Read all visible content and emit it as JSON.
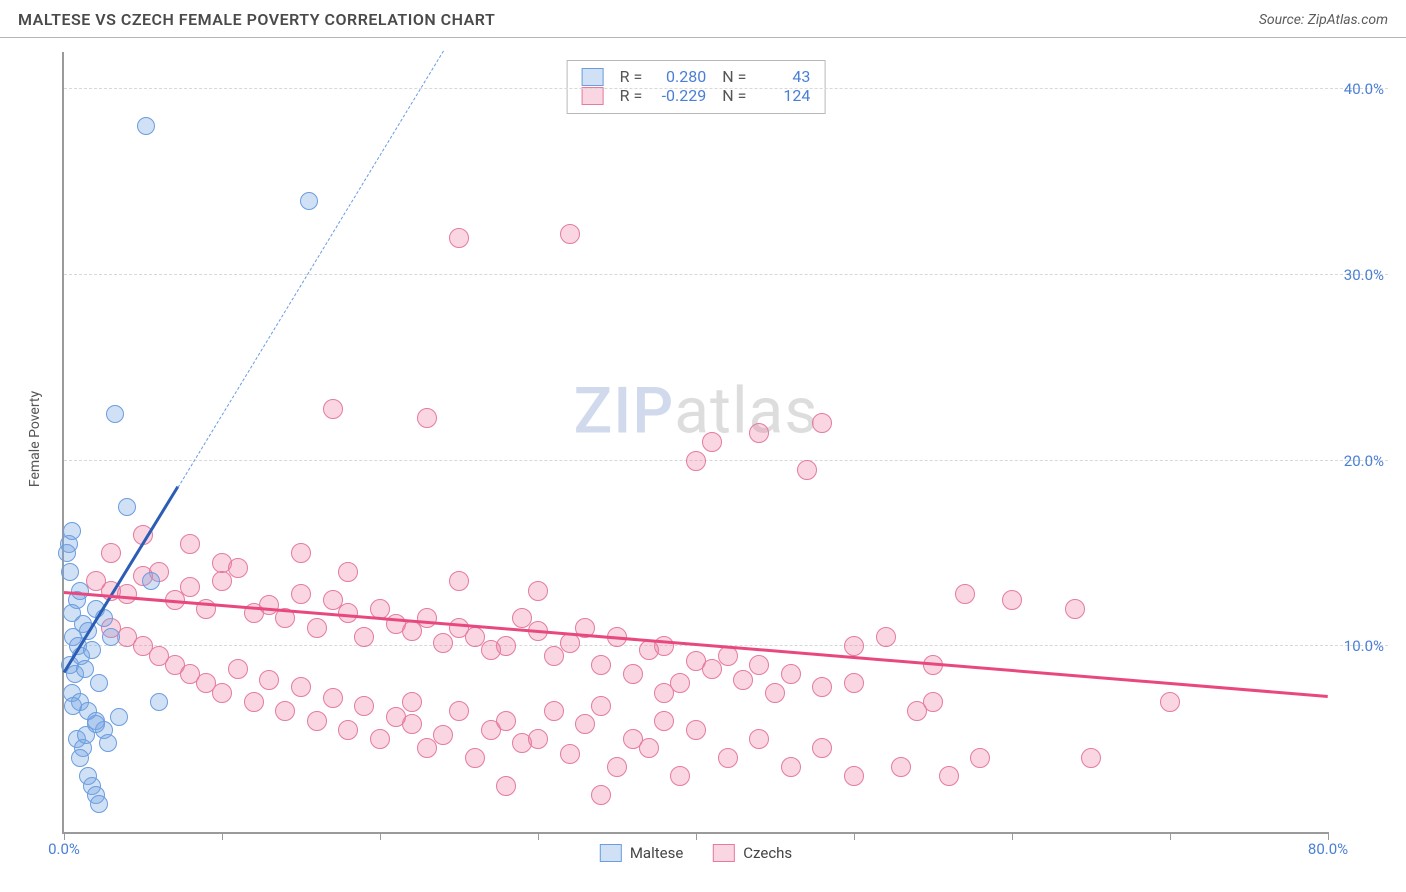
{
  "header": {
    "title": "MALTESE VS CZECH FEMALE POVERTY CORRELATION CHART",
    "source": "Source: ZipAtlas.com"
  },
  "axes": {
    "ylabel": "Female Poverty",
    "xlim": [
      0,
      80
    ],
    "ylim": [
      0,
      42
    ],
    "xticks": [
      0,
      10,
      20,
      30,
      40,
      50,
      60,
      70,
      80
    ],
    "xticklabels": [
      "0.0%",
      "",
      "",
      "",
      "",
      "",
      "",
      "",
      "80.0%"
    ],
    "yticks": [
      10,
      20,
      30,
      40
    ],
    "yticklabels": [
      "10.0%",
      "20.0%",
      "30.0%",
      "40.0%"
    ],
    "grid_color": "#d8d8d8",
    "axis_color": "#9a9a9a",
    "tick_label_color": "#4a7fd6",
    "label_fontsize": 14
  },
  "watermark": {
    "zip": "ZIP",
    "atlas": "atlas"
  },
  "series": {
    "maltese": {
      "label": "Maltese",
      "fill": "rgba(120,165,225,0.35)",
      "stroke": "#6b9de0",
      "marker_radius": 9,
      "R": "0.280",
      "N": "43",
      "trend": {
        "x1": 0,
        "y1": 8.5,
        "x2": 7.2,
        "y2": 18.5,
        "color": "#2b5db5"
      },
      "trend_ext": {
        "x1": 7.2,
        "y1": 18.5,
        "x2": 24,
        "y2": 42,
        "color": "#6b9de0"
      },
      "points": [
        [
          0.3,
          15.5
        ],
        [
          0.2,
          15.0
        ],
        [
          0.5,
          16.2
        ],
        [
          0.4,
          14.0
        ],
        [
          5.2,
          38.0
        ],
        [
          15.5,
          34.0
        ],
        [
          3.2,
          22.5
        ],
        [
          4.0,
          17.5
        ],
        [
          0.8,
          12.5
        ],
        [
          1.0,
          13.0
        ],
        [
          0.5,
          11.8
        ],
        [
          1.2,
          11.2
        ],
        [
          1.5,
          10.8
        ],
        [
          0.6,
          10.5
        ],
        [
          0.9,
          10.0
        ],
        [
          1.1,
          9.5
        ],
        [
          0.4,
          9.0
        ],
        [
          0.7,
          8.5
        ],
        [
          2.0,
          12.0
        ],
        [
          2.5,
          11.5
        ],
        [
          3.0,
          10.5
        ],
        [
          1.8,
          9.8
        ],
        [
          1.3,
          8.8
        ],
        [
          2.2,
          8.0
        ],
        [
          0.5,
          7.5
        ],
        [
          1.0,
          7.0
        ],
        [
          1.5,
          6.5
        ],
        [
          2.0,
          6.0
        ],
        [
          2.5,
          5.5
        ],
        [
          0.8,
          5.0
        ],
        [
          1.2,
          4.5
        ],
        [
          5.5,
          13.5
        ],
        [
          6.0,
          7.0
        ],
        [
          1.0,
          4.0
        ],
        [
          1.5,
          3.0
        ],
        [
          1.8,
          2.5
        ],
        [
          2.0,
          2.0
        ],
        [
          2.2,
          1.5
        ],
        [
          2.0,
          5.8
        ],
        [
          2.8,
          4.8
        ],
        [
          3.5,
          6.2
        ],
        [
          0.6,
          6.8
        ],
        [
          1.4,
          5.2
        ]
      ]
    },
    "czechs": {
      "label": "Czechs",
      "fill": "rgba(235,120,160,0.30)",
      "stroke": "#e57ba0",
      "marker_radius": 10,
      "R": "-0.229",
      "N": "124",
      "trend": {
        "x1": 0,
        "y1": 12.8,
        "x2": 80,
        "y2": 7.2,
        "color": "#e8487f"
      },
      "points": [
        [
          25,
          32.0
        ],
        [
          32,
          32.2
        ],
        [
          17,
          22.8
        ],
        [
          23,
          22.3
        ],
        [
          48,
          22.0
        ],
        [
          41,
          21.0
        ],
        [
          40,
          20.0
        ],
        [
          47,
          19.5
        ],
        [
          44,
          21.5
        ],
        [
          57,
          12.8
        ],
        [
          60,
          12.5
        ],
        [
          64,
          12.0
        ],
        [
          70,
          7.0
        ],
        [
          65,
          4.0
        ],
        [
          2,
          13.5
        ],
        [
          3,
          13.0
        ],
        [
          4,
          12.8
        ],
        [
          5,
          13.8
        ],
        [
          6,
          14.0
        ],
        [
          7,
          12.5
        ],
        [
          8,
          13.2
        ],
        [
          9,
          12.0
        ],
        [
          10,
          13.5
        ],
        [
          11,
          14.2
        ],
        [
          12,
          11.8
        ],
        [
          13,
          12.2
        ],
        [
          14,
          11.5
        ],
        [
          15,
          12.8
        ],
        [
          16,
          11.0
        ],
        [
          17,
          12.5
        ],
        [
          18,
          11.8
        ],
        [
          19,
          10.5
        ],
        [
          20,
          12.0
        ],
        [
          21,
          11.2
        ],
        [
          22,
          10.8
        ],
        [
          23,
          11.5
        ],
        [
          24,
          10.2
        ],
        [
          25,
          11.0
        ],
        [
          26,
          10.5
        ],
        [
          27,
          9.8
        ],
        [
          28,
          10.0
        ],
        [
          29,
          11.5
        ],
        [
          30,
          10.8
        ],
        [
          31,
          9.5
        ],
        [
          32,
          10.2
        ],
        [
          33,
          11.0
        ],
        [
          34,
          9.0
        ],
        [
          35,
          10.5
        ],
        [
          36,
          8.5
        ],
        [
          37,
          9.8
        ],
        [
          38,
          10.0
        ],
        [
          39,
          8.0
        ],
        [
          40,
          9.2
        ],
        [
          41,
          8.8
        ],
        [
          42,
          9.5
        ],
        [
          43,
          8.2
        ],
        [
          44,
          9.0
        ],
        [
          45,
          7.5
        ],
        [
          46,
          8.5
        ],
        [
          48,
          7.8
        ],
        [
          50,
          8.0
        ],
        [
          52,
          10.5
        ],
        [
          54,
          6.5
        ],
        [
          55,
          7.0
        ],
        [
          3,
          11.0
        ],
        [
          4,
          10.5
        ],
        [
          5,
          10.0
        ],
        [
          6,
          9.5
        ],
        [
          7,
          9.0
        ],
        [
          8,
          8.5
        ],
        [
          9,
          8.0
        ],
        [
          10,
          7.5
        ],
        [
          11,
          8.8
        ],
        [
          12,
          7.0
        ],
        [
          13,
          8.2
        ],
        [
          14,
          6.5
        ],
        [
          15,
          7.8
        ],
        [
          16,
          6.0
        ],
        [
          17,
          7.2
        ],
        [
          18,
          5.5
        ],
        [
          19,
          6.8
        ],
        [
          20,
          5.0
        ],
        [
          21,
          6.2
        ],
        [
          22,
          5.8
        ],
        [
          23,
          4.5
        ],
        [
          24,
          5.2
        ],
        [
          25,
          6.5
        ],
        [
          26,
          4.0
        ],
        [
          27,
          5.5
        ],
        [
          28,
          6.0
        ],
        [
          29,
          4.8
        ],
        [
          30,
          5.0
        ],
        [
          31,
          6.5
        ],
        [
          32,
          4.2
        ],
        [
          33,
          5.8
        ],
        [
          34,
          6.8
        ],
        [
          35,
          3.5
        ],
        [
          36,
          5.0
        ],
        [
          37,
          4.5
        ],
        [
          38,
          6.0
        ],
        [
          39,
          3.0
        ],
        [
          40,
          5.5
        ],
        [
          42,
          4.0
        ],
        [
          44,
          5.0
        ],
        [
          46,
          3.5
        ],
        [
          48,
          4.5
        ],
        [
          50,
          3.0
        ],
        [
          53,
          3.5
        ],
        [
          56,
          3.0
        ],
        [
          58,
          4.0
        ],
        [
          28,
          2.5
        ],
        [
          34,
          2.0
        ],
        [
          38,
          7.5
        ],
        [
          15,
          15.0
        ],
        [
          8,
          15.5
        ],
        [
          5,
          16.0
        ],
        [
          3,
          15.0
        ],
        [
          10,
          14.5
        ],
        [
          18,
          14.0
        ],
        [
          25,
          13.5
        ],
        [
          30,
          13.0
        ],
        [
          50,
          10.0
        ],
        [
          55,
          9.0
        ],
        [
          22,
          7.0
        ]
      ]
    }
  },
  "legend": {
    "r_label": "R =",
    "n_label": "N ="
  },
  "background_color": "#ffffff"
}
